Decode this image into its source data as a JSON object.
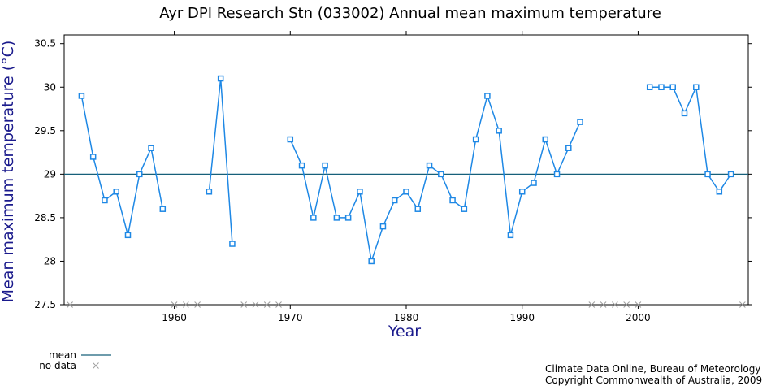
{
  "chart_data": {
    "type": "line",
    "title": "Ayr DPI Research Stn (033002) Annual mean maximum temperature",
    "xlabel": "Year",
    "ylabel": "Mean maximum temperature (°C)",
    "xlim": [
      1950.5,
      2009.5
    ],
    "ylim": [
      27.5,
      30.6
    ],
    "xticks": [
      1960,
      1970,
      1980,
      1990,
      2000
    ],
    "yticks": [
      27.5,
      28,
      28.5,
      29,
      29.5,
      30,
      30.5
    ],
    "series": [
      {
        "name": "",
        "x": [
          1952,
          1953,
          1954,
          1955,
          1956,
          1957,
          1958,
          1959,
          1960,
          1961,
          1962,
          1963,
          1964,
          1965,
          1966,
          1967,
          1968,
          1969,
          1970,
          1971,
          1972,
          1973,
          1974,
          1975,
          1976,
          1977,
          1978,
          1979,
          1980,
          1981,
          1982,
          1983,
          1984,
          1985,
          1986,
          1987,
          1988,
          1989,
          1990,
          1991,
          1992,
          1993,
          1994,
          1995,
          1996,
          1997,
          1998,
          1999,
          2000,
          2001,
          2002,
          2003,
          2004,
          2005,
          2006,
          2007,
          2008
        ],
        "values": [
          29.9,
          29.2,
          28.7,
          28.8,
          28.3,
          29.0,
          29.3,
          28.6,
          null,
          null,
          null,
          28.8,
          30.1,
          28.2,
          null,
          null,
          null,
          null,
          29.4,
          29.1,
          28.5,
          29.1,
          28.5,
          28.5,
          28.8,
          28.0,
          28.4,
          28.7,
          28.8,
          28.6,
          29.1,
          29.0,
          28.7,
          28.6,
          29.4,
          29.9,
          29.5,
          28.3,
          28.8,
          28.9,
          29.4,
          29.0,
          29.3,
          29.6,
          null,
          null,
          null,
          null,
          null,
          30.0,
          30.0,
          30.0,
          29.7,
          30.0,
          29.0,
          28.8,
          29.0
        ]
      }
    ],
    "mean": 29.0,
    "no_data_years": [
      1951,
      1960,
      1961,
      1962,
      1966,
      1967,
      1968,
      1969,
      1996,
      1997,
      1998,
      1999,
      2000,
      2009
    ],
    "grid": false,
    "legend": {
      "position": "bottom-left",
      "mean_label": "mean",
      "no_data_label": "no data"
    },
    "colors": {
      "series": "#1e88e5",
      "mean": "#17607a",
      "no_data": "#9e9e9e",
      "axis_title": "#1a1a8c"
    }
  },
  "credits": {
    "line1": "Climate Data Online, Bureau of Meteorology",
    "line2": "Copyright Commonwealth of Australia, 2009"
  }
}
